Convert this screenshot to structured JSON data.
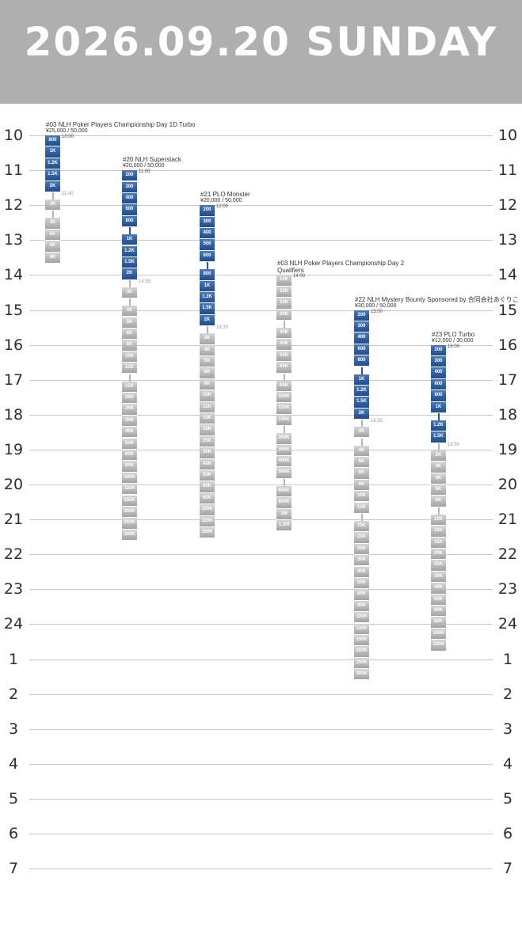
{
  "header": {
    "date": "2026.09.20",
    "weekday": "SUNDAY"
  },
  "colors": {
    "header_bg": "#afafaf",
    "blind_level": "#2a5896",
    "late_level": "#b0b0b0",
    "grid_line": "#c8c8c8"
  },
  "hours": [
    "10",
    "11",
    "12",
    "13",
    "14",
    "15",
    "16",
    "17",
    "18",
    "19",
    "20",
    "21",
    "22",
    "23",
    "24",
    "1",
    "2",
    "3",
    "4",
    "5",
    "6",
    "7"
  ],
  "events": [
    {
      "title": "#03 NLH Poker Players Championship Day 1D Turbo",
      "buyin": "¥25,000 / 50,000",
      "start": "10:00",
      "late_reg": "11:40",
      "groups": [
        {
          "type": "blue",
          "levels": [
            "800",
            "1K",
            "1.2K",
            "1.5K",
            "2K"
          ]
        },
        {
          "type": "grey",
          "levels": [
            "3K"
          ]
        },
        {
          "type": "grey",
          "levels": [
            "4K",
            "5K",
            "6K",
            "8K"
          ]
        }
      ]
    },
    {
      "title": "#20 NLH Superstack",
      "buyin": "¥20,000 / 50,000",
      "start": "11:00",
      "late_reg": "14:55",
      "groups": [
        {
          "type": "blue",
          "levels": [
            "200",
            "300",
            "400",
            "600",
            "800"
          ]
        },
        {
          "type": "blue",
          "levels": [
            "1K",
            "1.2K",
            "1.5K",
            "2K"
          ]
        },
        {
          "type": "grey",
          "levels": [
            "3K"
          ]
        },
        {
          "type": "grey",
          "levels": [
            "4K",
            "5K",
            "6K",
            "8K",
            "10K",
            "12K"
          ]
        },
        {
          "type": "grey",
          "levels": [
            "15K",
            "20K",
            "25K",
            "30K",
            "40K",
            "50K",
            "60K",
            "80K",
            "100K",
            "120K",
            "150K",
            "200K",
            "250K",
            "300K"
          ]
        }
      ]
    },
    {
      "title": "#21 PLO Monster",
      "buyin": "¥20,000 / 50,000",
      "start": "12:00",
      "late_reg": "16:30",
      "groups": [
        {
          "type": "blue",
          "levels": [
            "200",
            "300",
            "400",
            "500",
            "600"
          ]
        },
        {
          "type": "blue",
          "levels": [
            "800",
            "1K",
            "1.2K",
            "1.5K",
            "2K"
          ]
        },
        {
          "type": "grey",
          "levels": [
            "3K",
            "4K",
            "5K",
            "6K",
            "8K",
            "10K",
            "12K",
            "15K",
            "20K",
            "25K",
            "30K",
            "40K",
            "50K",
            "60K",
            "80K",
            "100K",
            "120K",
            "150K"
          ]
        }
      ]
    },
    {
      "title": "#03 NLH Poker Players Championship Day 2\nQualifiers",
      "buyin": "",
      "start": "14:00",
      "late_reg": "",
      "groups": [
        {
          "type": "grey",
          "levels": [
            "10K",
            "12K",
            "15K",
            "20K"
          ]
        },
        {
          "type": "grey",
          "levels": [
            "30K",
            "40K",
            "50K",
            "60K"
          ]
        },
        {
          "type": "grey",
          "levels": [
            "80K",
            "100K",
            "120K",
            "150K"
          ]
        },
        {
          "type": "grey",
          "levels": [
            "200K",
            "300K",
            "400K",
            "500K"
          ]
        },
        {
          "type": "grey",
          "levels": [
            "600K",
            "800K",
            "1M",
            "1.2M"
          ]
        }
      ]
    },
    {
      "title": "#22 NLH Mystery Bounty Sponsored by 合同会社あぐりこ",
      "buyin": "¥30,000 / 50,000",
      "start": "15:00",
      "late_reg": "18:55",
      "groups": [
        {
          "type": "blue",
          "levels": [
            "200",
            "300",
            "400",
            "600",
            "800"
          ]
        },
        {
          "type": "blue",
          "levels": [
            "1K",
            "1.2K",
            "1.5K",
            "2K"
          ]
        },
        {
          "type": "grey",
          "levels": [
            "3K"
          ]
        },
        {
          "type": "grey",
          "levels": [
            "4K",
            "5K",
            "6K",
            "8K",
            "10K",
            "12K"
          ]
        },
        {
          "type": "grey",
          "levels": [
            "15K",
            "20K",
            "25K",
            "30K",
            "40K",
            "50K",
            "60K",
            "80K",
            "100K",
            "120K",
            "150K",
            "200K",
            "250K",
            "300K"
          ]
        }
      ]
    },
    {
      "title": "#23 PLO Turbo",
      "buyin": "¥12,000 / 30,000",
      "start": "16:00",
      "late_reg": "18:50",
      "groups": [
        {
          "type": "blue",
          "levels": [
            "200",
            "300",
            "400",
            "600",
            "800",
            "1K"
          ]
        },
        {
          "type": "blue",
          "levels": [
            "1.2K",
            "1.5K"
          ]
        },
        {
          "type": "grey",
          "levels": [
            "2K",
            "3K",
            "4K",
            "5K",
            "6K"
          ]
        },
        {
          "type": "grey",
          "levels": [
            "10K",
            "12K",
            "15K",
            "20K",
            "25K",
            "30K",
            "40K",
            "50K",
            "60K",
            "80K",
            "100K",
            "120K"
          ]
        }
      ]
    }
  ]
}
